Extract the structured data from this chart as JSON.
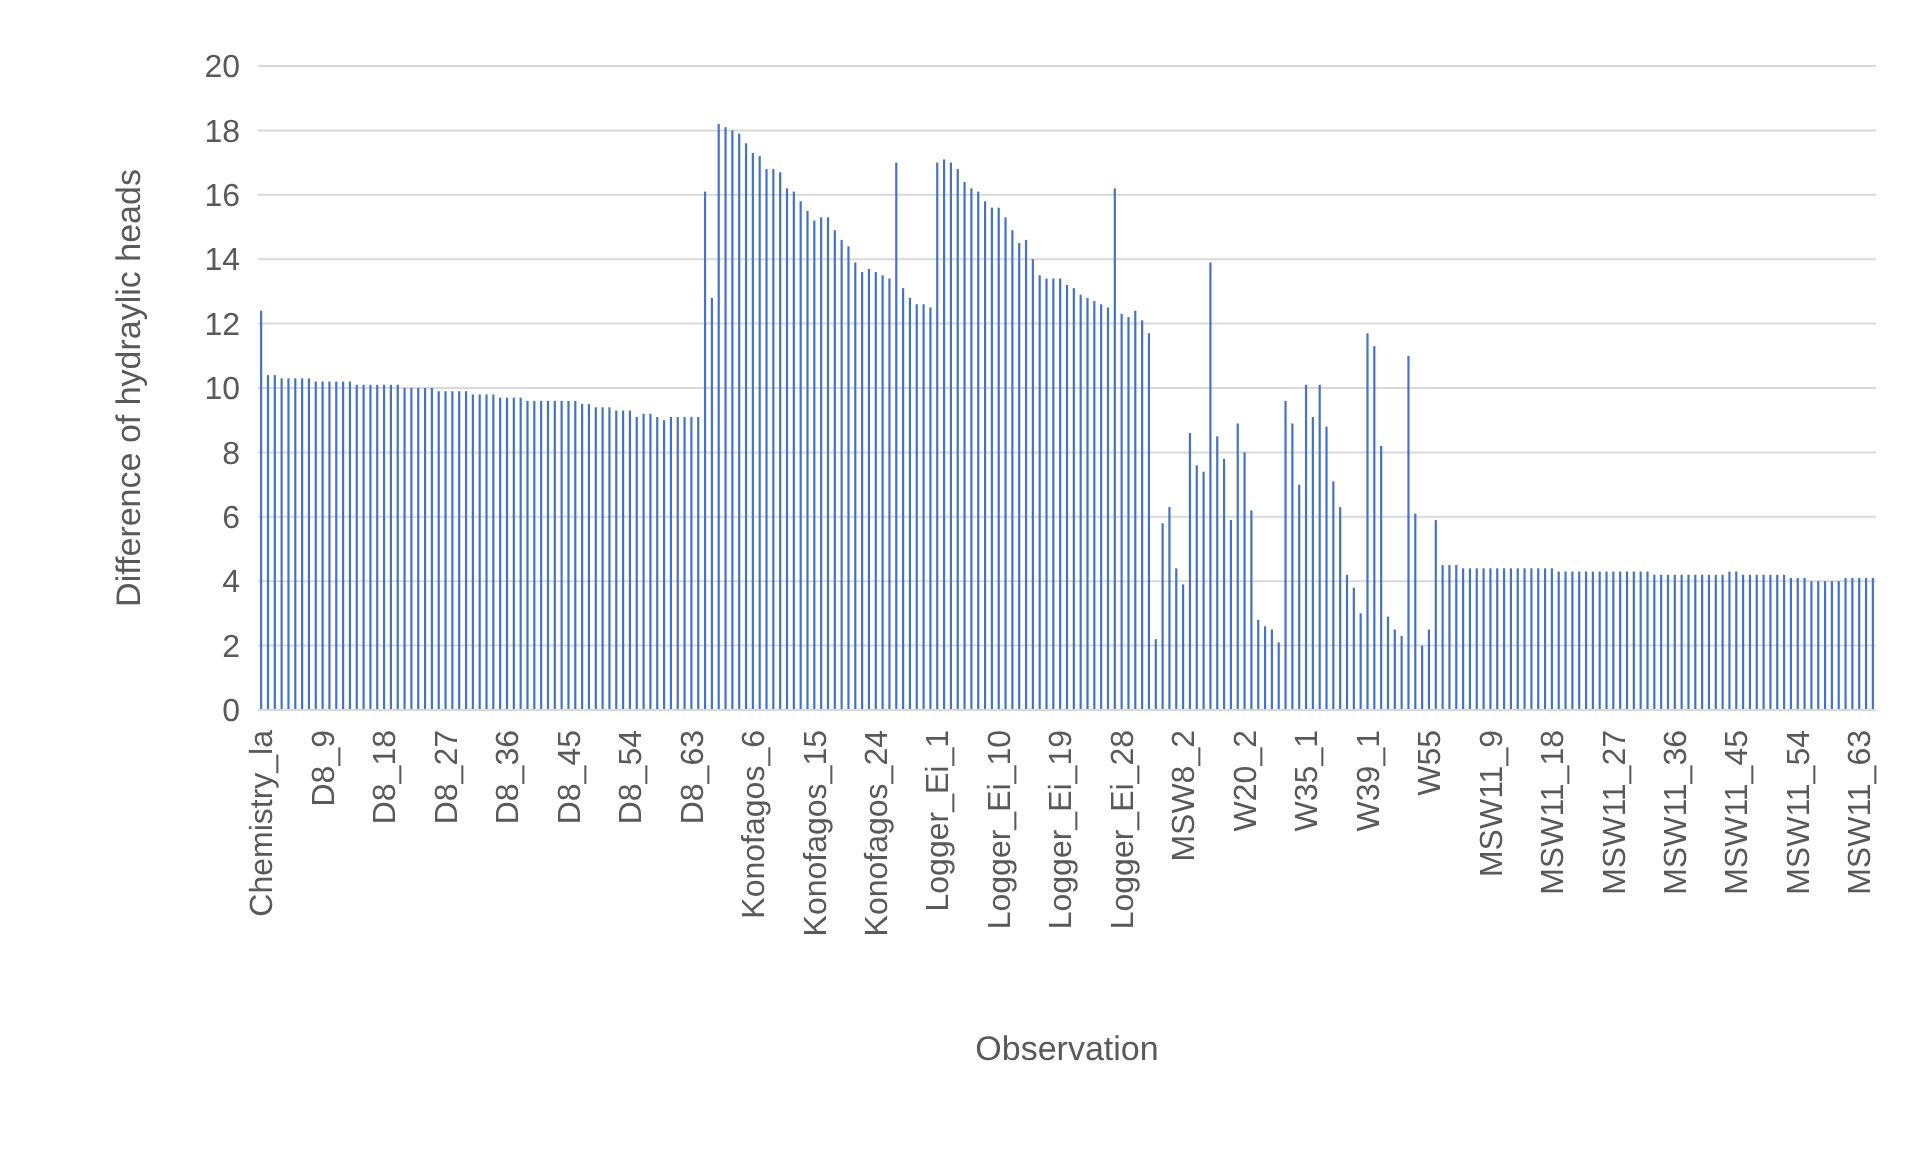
{
  "chart_data": {
    "type": "bar",
    "xlabel": "Observation",
    "ylabel": "Difference of hydraylic heads",
    "color": "#4472c4",
    "ylim": [
      0,
      20
    ],
    "yticks": [
      0,
      2,
      4,
      6,
      8,
      10,
      12,
      14,
      16,
      18,
      20
    ],
    "grid": "y",
    "categories": [
      "Chemistry_la",
      null,
      null,
      null,
      null,
      null,
      null,
      null,
      null,
      "D8_9",
      null,
      null,
      null,
      null,
      null,
      null,
      null,
      null,
      "D8_18",
      null,
      null,
      null,
      null,
      null,
      null,
      null,
      null,
      "D8_27",
      null,
      null,
      null,
      null,
      null,
      null,
      null,
      null,
      "D8_36",
      null,
      null,
      null,
      null,
      null,
      null,
      null,
      null,
      "D8_45",
      null,
      null,
      null,
      null,
      null,
      null,
      null,
      null,
      "D8_54",
      null,
      null,
      null,
      null,
      null,
      null,
      null,
      null,
      "D8_63",
      null,
      null,
      null,
      null,
      null,
      null,
      null,
      null,
      "Konofagos_6",
      null,
      null,
      null,
      null,
      null,
      null,
      null,
      null,
      "Konofagos_15",
      null,
      null,
      null,
      null,
      null,
      null,
      null,
      null,
      "Konofagos_24",
      null,
      null,
      null,
      null,
      null,
      null,
      null,
      null,
      "Logger_Ei_1",
      null,
      null,
      null,
      null,
      null,
      null,
      null,
      null,
      "Logger_Ei_10",
      null,
      null,
      null,
      null,
      null,
      null,
      null,
      null,
      "Logger_Ei_19",
      null,
      null,
      null,
      null,
      null,
      null,
      null,
      null,
      "Logger_Ei_28",
      null,
      null,
      null,
      null,
      null,
      null,
      null,
      null,
      "MSW8_2",
      null,
      null,
      null,
      null,
      null,
      null,
      null,
      null,
      "W20_2",
      null,
      null,
      null,
      null,
      null,
      null,
      null,
      null,
      "W35_1",
      null,
      null,
      null,
      null,
      null,
      null,
      null,
      null,
      "W39_1",
      null,
      null,
      null,
      null,
      null,
      null,
      null,
      null,
      "W55",
      null,
      null,
      null,
      null,
      null,
      null,
      null,
      null,
      "MSW11_9",
      null,
      null,
      null,
      null,
      null,
      null,
      null,
      null,
      "MSW11_18",
      null,
      null,
      null,
      null,
      null,
      null,
      null,
      null,
      "MSW11_27",
      null,
      null,
      null,
      null,
      null,
      null,
      null,
      null,
      "MSW11_36",
      null,
      null,
      null,
      null,
      null,
      null,
      null,
      null,
      "MSW11_45",
      null,
      null,
      null,
      null,
      null,
      null,
      null,
      null,
      "MSW11_54",
      null,
      null,
      null,
      null,
      null,
      null,
      null,
      null,
      "MSW11_63",
      null,
      null
    ],
    "values": [
      12.4,
      10.4,
      10.4,
      10.3,
      10.3,
      10.3,
      10.3,
      10.3,
      10.2,
      10.2,
      10.2,
      10.2,
      10.2,
      10.2,
      10.1,
      10.1,
      10.1,
      10.1,
      10.1,
      10.1,
      10.1,
      10.0,
      10.0,
      10.0,
      10.0,
      10.0,
      9.9,
      9.9,
      9.9,
      9.9,
      9.9,
      9.8,
      9.8,
      9.8,
      9.8,
      9.7,
      9.7,
      9.7,
      9.7,
      9.6,
      9.6,
      9.6,
      9.6,
      9.6,
      9.6,
      9.6,
      9.6,
      9.5,
      9.5,
      9.4,
      9.4,
      9.4,
      9.3,
      9.3,
      9.3,
      9.1,
      9.2,
      9.2,
      9.1,
      9.0,
      9.1,
      9.1,
      9.1,
      9.1,
      9.1,
      16.1,
      12.8,
      18.2,
      18.1,
      18.0,
      17.9,
      17.6,
      17.3,
      17.2,
      16.8,
      16.8,
      16.7,
      16.2,
      16.1,
      15.8,
      15.5,
      15.2,
      15.3,
      15.3,
      14.9,
      14.6,
      14.4,
      13.9,
      13.6,
      13.7,
      13.6,
      13.5,
      13.4,
      17.0,
      13.1,
      12.8,
      12.6,
      12.6,
      12.5,
      17.0,
      17.1,
      17.0,
      16.8,
      16.4,
      16.2,
      16.1,
      15.8,
      15.6,
      15.6,
      15.3,
      14.9,
      14.5,
      14.6,
      14.0,
      13.5,
      13.4,
      13.4,
      13.4,
      13.2,
      13.1,
      12.9,
      12.8,
      12.7,
      12.6,
      12.5,
      16.2,
      12.3,
      12.2,
      12.4,
      12.1,
      11.7,
      2.2,
      5.8,
      6.3,
      4.4,
      3.9,
      8.6,
      7.6,
      7.4,
      13.9,
      8.5,
      7.8,
      5.9,
      8.9,
      8.0,
      6.2,
      2.8,
      2.6,
      2.5,
      2.1,
      9.6,
      8.9,
      7.0,
      10.1,
      9.1,
      10.1,
      8.8,
      7.1,
      6.3,
      4.2,
      3.8,
      3.0,
      11.7,
      11.3,
      8.2,
      2.9,
      2.5,
      2.3,
      11.0,
      6.1,
      2.0,
      2.5,
      5.9,
      4.5,
      4.5,
      4.5,
      4.4,
      4.4,
      4.4,
      4.4,
      4.4,
      4.4,
      4.4,
      4.4,
      4.4,
      4.4,
      4.4,
      4.4,
      4.4,
      4.4,
      4.3,
      4.3,
      4.3,
      4.3,
      4.3,
      4.3,
      4.3,
      4.3,
      4.3,
      4.3,
      4.3,
      4.3,
      4.3,
      4.3,
      4.2,
      4.2,
      4.2,
      4.2,
      4.2,
      4.2,
      4.2,
      4.2,
      4.2,
      4.2,
      4.2,
      4.3,
      4.3,
      4.2,
      4.2,
      4.2,
      4.2,
      4.2,
      4.2,
      4.2,
      4.1,
      4.1,
      4.1,
      4.0,
      4.0,
      4.0,
      4.0,
      4.0,
      4.1,
      4.1,
      4.1,
      4.1,
      4.1
    ]
  }
}
